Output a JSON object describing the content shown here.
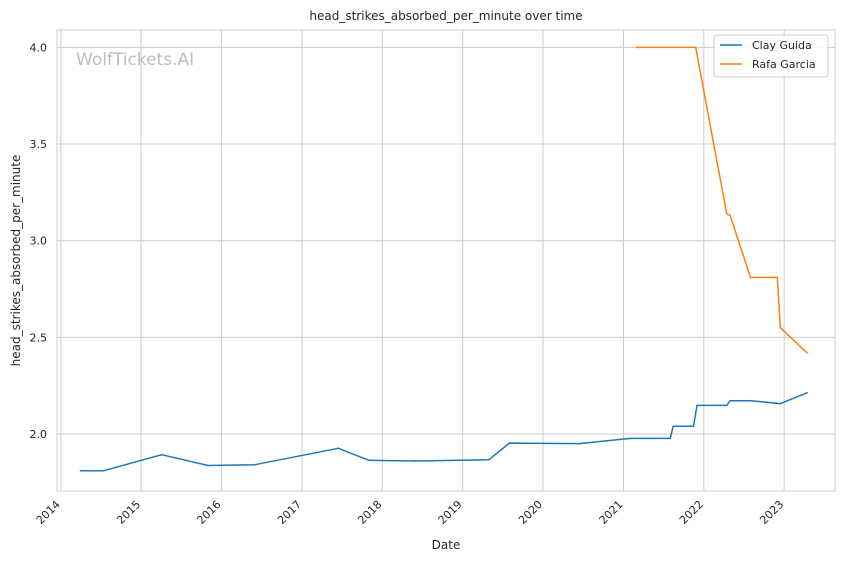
{
  "chart_data": {
    "type": "line",
    "title": "head_strikes_absorbed_per_minute over time",
    "xlabel": "Date",
    "ylabel": "head_strikes_absorbed_per_minute",
    "watermark": "WolfTickets.AI",
    "x_range": [
      "2013-12-15",
      "2023-08-20"
    ],
    "ylim": [
      1.705,
      4.09
    ],
    "x_ticks": [
      "2014",
      "2015",
      "2016",
      "2017",
      "2018",
      "2019",
      "2020",
      "2021",
      "2022",
      "2023"
    ],
    "y_ticks": [
      2.0,
      2.5,
      3.0,
      3.5,
      4.0
    ],
    "y_tick_labels": [
      "2.0",
      "2.5",
      "3.0",
      "3.5",
      "4.0"
    ],
    "grid": true,
    "legend_position": "top-right",
    "series": [
      {
        "name": "Clay Guida",
        "color": "#1f77b4",
        "x": [
          "2014-04-01",
          "2014-07-15",
          "2015-04-05",
          "2015-11-01",
          "2016-06-01",
          "2017-06-15",
          "2017-11-01",
          "2018-06-01",
          "2019-05-01",
          "2019-08-01",
          "2020-06-15",
          "2021-02-01",
          "2021-08-01",
          "2021-08-15",
          "2021-11-15",
          "2021-12-01",
          "2022-04-15",
          "2022-05-01",
          "2022-08-01",
          "2022-12-15",
          "2023-04-15"
        ],
        "values": [
          1.81,
          1.81,
          1.893,
          1.837,
          1.841,
          1.926,
          1.864,
          1.86,
          1.867,
          1.953,
          1.95,
          1.977,
          1.977,
          2.04,
          2.04,
          2.148,
          2.148,
          2.172,
          2.172,
          2.157,
          2.213
        ]
      },
      {
        "name": "Rafa Garcia",
        "color": "#ff7f0e",
        "x": [
          "2021-03-01",
          "2021-11-25",
          "2022-04-15",
          "2022-05-01",
          "2022-08-01",
          "2022-12-01",
          "2022-12-15",
          "2023-04-15"
        ],
        "values": [
          4.0,
          4.0,
          3.14,
          3.13,
          2.81,
          2.81,
          2.55,
          2.42
        ]
      }
    ]
  }
}
